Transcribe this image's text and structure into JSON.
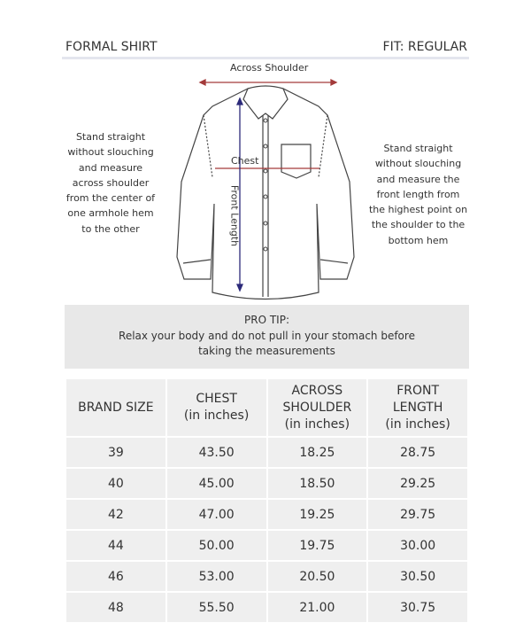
{
  "header": {
    "title": "FORMAL SHIRT",
    "fit": "FIT: REGULAR"
  },
  "diagram": {
    "across_shoulder_label": "Across Shoulder",
    "chest_label": "Chest",
    "front_length_label": "Front Length",
    "left_note": "Stand straight without slouching and measure across shoulder from the center of one armhole hem to the other",
    "right_note": "Stand straight without slouching and measure the front length from the highest point on the shoulder to the bottom hem",
    "colors": {
      "horizontal_arrows": "#a33a3a",
      "vertical_arrow": "#2c2a7a"
    }
  },
  "pro_tip": {
    "title": "PRO TIP:",
    "line1": "Relax your body and do not pull in your stomach before",
    "line2": "taking the measurements"
  },
  "table": {
    "headers": [
      {
        "l1": "BRAND SIZE",
        "l2": "",
        "l3": ""
      },
      {
        "l1": "CHEST",
        "l2": "(in inches)",
        "l3": ""
      },
      {
        "l1": "ACROSS",
        "l2": "SHOULDER",
        "l3": "(in inches)"
      },
      {
        "l1": "FRONT",
        "l2": "LENGTH",
        "l3": "(in inches)"
      }
    ],
    "rows": [
      [
        "39",
        "43.50",
        "18.25",
        "28.75"
      ],
      [
        "40",
        "45.00",
        "18.50",
        "29.25"
      ],
      [
        "42",
        "47.00",
        "19.25",
        "29.75"
      ],
      [
        "44",
        "50.00",
        "19.75",
        "30.00"
      ],
      [
        "46",
        "53.00",
        "20.50",
        "30.50"
      ],
      [
        "48",
        "55.50",
        "21.00",
        "30.75"
      ]
    ]
  }
}
